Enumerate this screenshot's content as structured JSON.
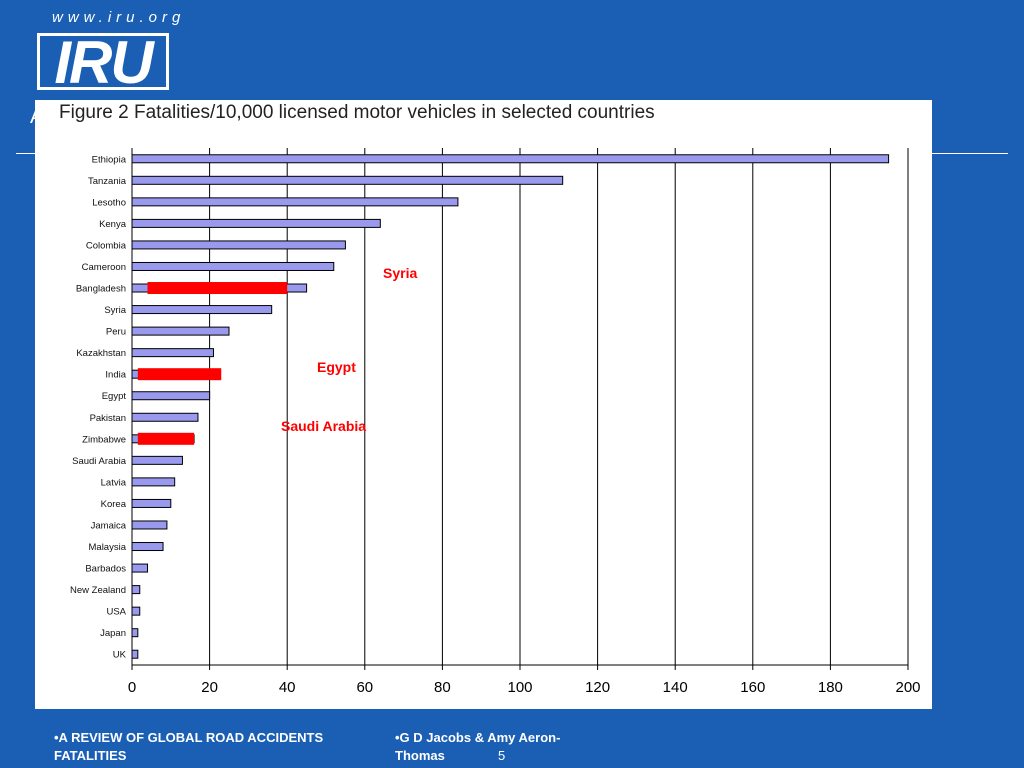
{
  "header": {
    "site_url": "www.iru.org",
    "logo_text": "IRU",
    "partial_letter": "A"
  },
  "figure": {
    "title": "Figure 2  Fatalities/10,000 licensed motor vehicles in selected countries"
  },
  "chart_data": {
    "type": "bar",
    "orientation": "horizontal",
    "title": "Figure 2  Fatalities/10,000 licensed motor vehicles in selected countries",
    "categories": [
      "Ethiopia",
      "Tanzania",
      "Lesotho",
      "Kenya",
      "Colombia",
      "Cameroon",
      "Bangladesh",
      "Syria",
      "Peru",
      "Kazakhstan",
      "India",
      "Egypt",
      "Pakistan",
      "Zimbabwe",
      "Saudi Arabia",
      "Latvia",
      "Korea",
      "Jamaica",
      "Malaysia",
      "Barbados",
      "New Zealand",
      "USA",
      "Japan",
      "UK"
    ],
    "values": [
      195,
      111,
      84,
      64,
      55,
      52,
      45,
      36,
      25,
      21,
      20,
      20,
      17,
      16,
      13,
      11,
      10,
      9,
      8,
      4,
      2,
      2,
      1.5,
      1.5
    ],
    "xlim": [
      0,
      200
    ],
    "xticks": [
      0,
      20,
      40,
      60,
      80,
      100,
      120,
      140,
      160,
      180,
      200
    ],
    "grid": true,
    "bar_color": "#9999ee",
    "annotations": [
      {
        "text": "Syria",
        "value": 40,
        "color": "#ff0000"
      },
      {
        "text": "Egypt",
        "value": 23,
        "color": "#ff0000"
      },
      {
        "text": "Saudi Arabia",
        "value": 16,
        "color": "#ff0000"
      }
    ]
  },
  "footer": {
    "left_text": "•A REVIEW OF GLOBAL ROAD ACCIDENTS FATALITIES",
    "right_text": "•G D Jacobs & Amy Aeron-Thomas",
    "page_number": "5"
  }
}
